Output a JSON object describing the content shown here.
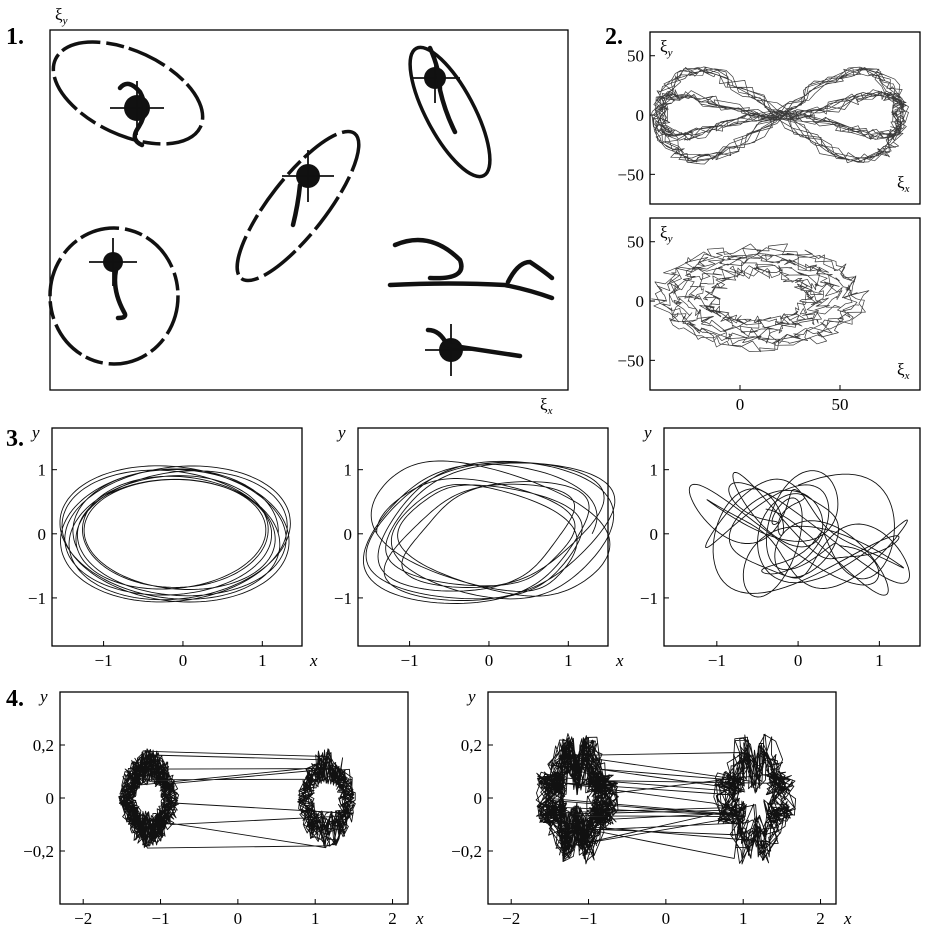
{
  "panels": {
    "p1": {
      "label": "1.",
      "ylabel": "ξ",
      "ylabel_sub": "y",
      "xlabel": "ξ",
      "xlabel_sub": "x"
    },
    "p2": {
      "label": "2.",
      "ylabel": "ξ",
      "ylabel_sub": "y",
      "xlabel": "ξ",
      "xlabel_sub": "x"
    },
    "p3": {
      "label": "3.",
      "ylabel": "y",
      "xlabel": "x"
    },
    "p4": {
      "label": "4.",
      "ylabel": "y",
      "xlabel": "x"
    }
  },
  "chart_data": [
    {
      "id": "panel-1",
      "type": "scatter",
      "xlabel": "ξx",
      "ylabel": "ξy",
      "note": ""
    },
    {
      "id": "panel-2-top",
      "type": "line",
      "xlabel": "ξx",
      "ylabel": "ξy",
      "yticks": [
        "50",
        "0",
        "−50"
      ],
      "ytick_values": [
        50,
        0,
        -50
      ],
      "ylim": [
        -75,
        70
      ],
      "xlim": [
        -45,
        90
      ]
    },
    {
      "id": "panel-2-bottom",
      "type": "line",
      "xlabel": "ξx",
      "ylabel": "ξy",
      "xticks": [
        "0",
        "50"
      ],
      "xtick_values": [
        0,
        50
      ],
      "yticks": [
        "50",
        "0",
        "−50"
      ],
      "ytick_values": [
        50,
        0,
        -50
      ],
      "ylim": [
        -75,
        70
      ],
      "xlim": [
        -45,
        90
      ]
    },
    {
      "id": "panel-3-left",
      "type": "line",
      "xlabel": "x",
      "ylabel": "y",
      "xticks": [
        "−1",
        "0",
        "1"
      ],
      "xtick_values": [
        -1,
        0,
        1
      ],
      "yticks": [
        "1",
        "0",
        "−1"
      ],
      "ytick_values": [
        1,
        0,
        -1
      ],
      "xlim": [
        -1.65,
        1.5
      ],
      "ylim": [
        -1.75,
        1.65
      ]
    },
    {
      "id": "panel-3-middle",
      "type": "line",
      "xlabel": "x",
      "ylabel": "y",
      "xticks": [
        "−1",
        "0",
        "1"
      ],
      "xtick_values": [
        -1,
        0,
        1
      ],
      "yticks": [
        "1",
        "0",
        "−1"
      ],
      "ytick_values": [
        1,
        0,
        -1
      ],
      "xlim": [
        -1.65,
        1.5
      ],
      "ylim": [
        -1.75,
        1.65
      ]
    },
    {
      "id": "panel-3-right",
      "type": "line",
      "xlabel": "x",
      "ylabel": "y",
      "xticks": [
        "−1",
        "0",
        "1"
      ],
      "xtick_values": [
        -1,
        0,
        1
      ],
      "yticks": [
        "1",
        "0",
        "−1"
      ],
      "ytick_values": [
        1,
        0,
        -1
      ],
      "xlim": [
        -1.65,
        1.5
      ],
      "ylim": [
        -1.75,
        1.65
      ]
    },
    {
      "id": "panel-4-left",
      "type": "line",
      "xlabel": "x",
      "ylabel": "y",
      "xticks": [
        "−2",
        "−1",
        "0",
        "1",
        "2"
      ],
      "xtick_values": [
        -2,
        -1,
        0,
        1,
        2
      ],
      "yticks": [
        "0,2",
        "0",
        "−0,2"
      ],
      "ytick_values": [
        0.2,
        0,
        -0.2
      ],
      "xlim": [
        -2.3,
        2.2
      ],
      "ylim": [
        -0.4,
        0.4
      ]
    },
    {
      "id": "panel-4-right",
      "type": "line",
      "xlabel": "x",
      "ylabel": "y",
      "xticks": [
        "−2",
        "−1",
        "0",
        "1",
        "2"
      ],
      "xtick_values": [
        -2,
        -1,
        0,
        1,
        2
      ],
      "yticks": [
        "0,2",
        "0",
        "−0,2"
      ],
      "ytick_values": [
        0.2,
        0,
        -0.2
      ],
      "xlim": [
        -2.3,
        2.2
      ],
      "ylim": [
        -0.4,
        0.4
      ]
    }
  ]
}
